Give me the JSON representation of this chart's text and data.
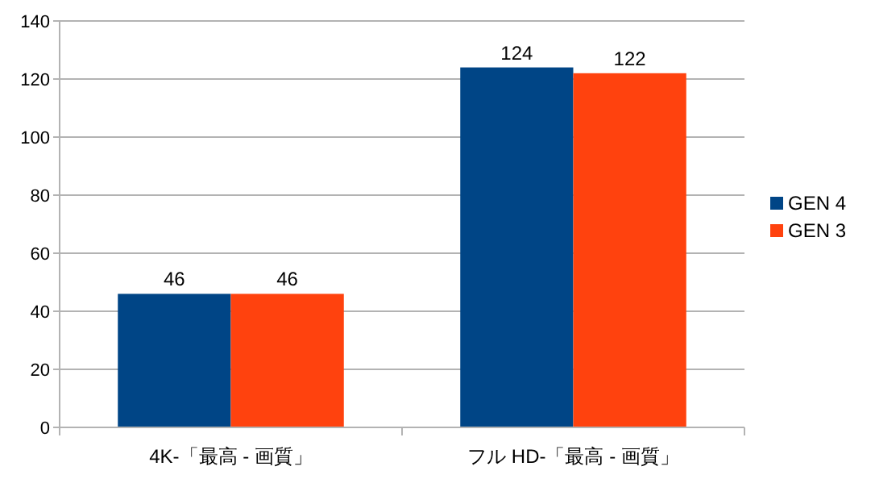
{
  "chart_data": {
    "type": "bar",
    "categories": [
      "4K-「最高 - 画質」",
      "フル HD-「最高 - 画質」"
    ],
    "series": [
      {
        "name": "GEN 4",
        "color": "#004586",
        "values": [
          46,
          124
        ]
      },
      {
        "name": "GEN 3",
        "color": "#ff420e",
        "values": [
          46,
          122
        ]
      }
    ],
    "ylim": [
      0,
      140
    ],
    "yticks": [
      0,
      20,
      40,
      60,
      80,
      100,
      120,
      140
    ],
    "grid": "y",
    "legend": "right",
    "data_labels": true
  }
}
